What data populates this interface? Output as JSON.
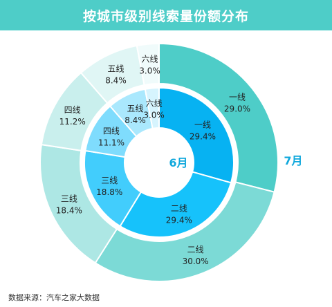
{
  "title": "按城市级别线索量份额分布",
  "source": "数据来源：汽车之家大数据",
  "chart_data": {
    "type": "pie",
    "subtype": "nested-donut",
    "categories": [
      "一线",
      "二线",
      "三线",
      "四线",
      "五线",
      "六线"
    ],
    "series": [
      {
        "name": "6月",
        "ring": "inner",
        "values": [
          29.4,
          29.4,
          18.8,
          11.1,
          8.4,
          3.0
        ],
        "labels": [
          "29.4%",
          "29.4%",
          "18.8%",
          "11.1%",
          "8.4%",
          "3.0%"
        ],
        "colors": [
          "#07b2f2",
          "#16c2fb",
          "#42cdfc",
          "#7fdcfd",
          "#aae8fd",
          "#d6f4fe"
        ]
      },
      {
        "name": "7月",
        "ring": "outer",
        "values": [
          29.0,
          30.0,
          18.4,
          11.2,
          8.4,
          3.0
        ],
        "labels": [
          "29.0%",
          "30.0%",
          "18.4%",
          "11.2%",
          "8.4%",
          "3.0%"
        ],
        "colors": [
          "#4ecdc8",
          "#7cdad6",
          "#ade7e4",
          "#c9efed",
          "#e0f6f5",
          "#f0fbfb"
        ]
      }
    ],
    "label_color": "#222222",
    "series_label_color": "#10a8dc"
  }
}
